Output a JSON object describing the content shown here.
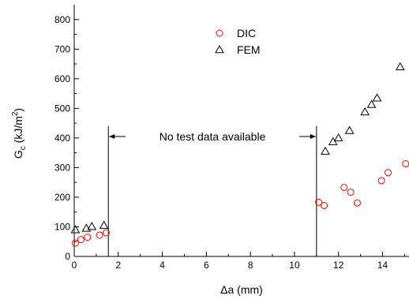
{
  "chart_data": {
    "type": "scatter",
    "title": "",
    "xlabel": "Δa (mm)",
    "ylabel": "G_c (kJ/m^2)",
    "ylabel_parts": {
      "main": "G",
      "sub": "c",
      "unit_open": " (kJ/m",
      "sup": "2",
      "unit_close": ")"
    },
    "xlim": [
      0,
      15.2
    ],
    "ylim": [
      0,
      850
    ],
    "x_ticks": [
      0,
      2,
      4,
      6,
      8,
      10,
      12,
      14
    ],
    "y_ticks": [
      0,
      100,
      200,
      300,
      400,
      500,
      600,
      700,
      800
    ],
    "x_tick_labels": [
      "0",
      "2",
      "4",
      "6",
      "8",
      "10",
      "12",
      "14"
    ],
    "y_tick_labels": [
      "0",
      "100",
      "200",
      "300",
      "400",
      "500",
      "600",
      "700",
      "800"
    ],
    "grid": false,
    "legend_position": "top-center",
    "series": [
      {
        "name": "DIC",
        "marker": "circle-open",
        "color": "#ff0000",
        "points": [
          [
            0.05,
            45
          ],
          [
            0.3,
            57
          ],
          [
            0.6,
            65
          ],
          [
            1.15,
            72
          ],
          [
            1.45,
            80
          ],
          [
            11.1,
            183
          ],
          [
            11.35,
            172
          ],
          [
            12.25,
            233
          ],
          [
            12.55,
            217
          ],
          [
            12.85,
            181
          ],
          [
            13.95,
            256
          ],
          [
            14.25,
            283
          ],
          [
            15.05,
            313
          ]
        ]
      },
      {
        "name": "FEM",
        "marker": "triangle-open",
        "color": "#000000",
        "points": [
          [
            0.05,
            90
          ],
          [
            0.55,
            95
          ],
          [
            0.8,
            101
          ],
          [
            1.35,
            105
          ],
          [
            11.4,
            355
          ],
          [
            11.75,
            387
          ],
          [
            12.0,
            400
          ],
          [
            12.5,
            425
          ],
          [
            13.2,
            488
          ],
          [
            13.5,
            513
          ],
          [
            13.75,
            535
          ],
          [
            14.8,
            640
          ]
        ]
      }
    ],
    "vertical_lines": [
      1.55,
      11.0
    ],
    "vertical_line_top": 440,
    "annotation": {
      "text": "No test data available",
      "arrow_y": 405,
      "arrow_from_x": 1.55,
      "arrow_to_x": 11.0
    }
  }
}
